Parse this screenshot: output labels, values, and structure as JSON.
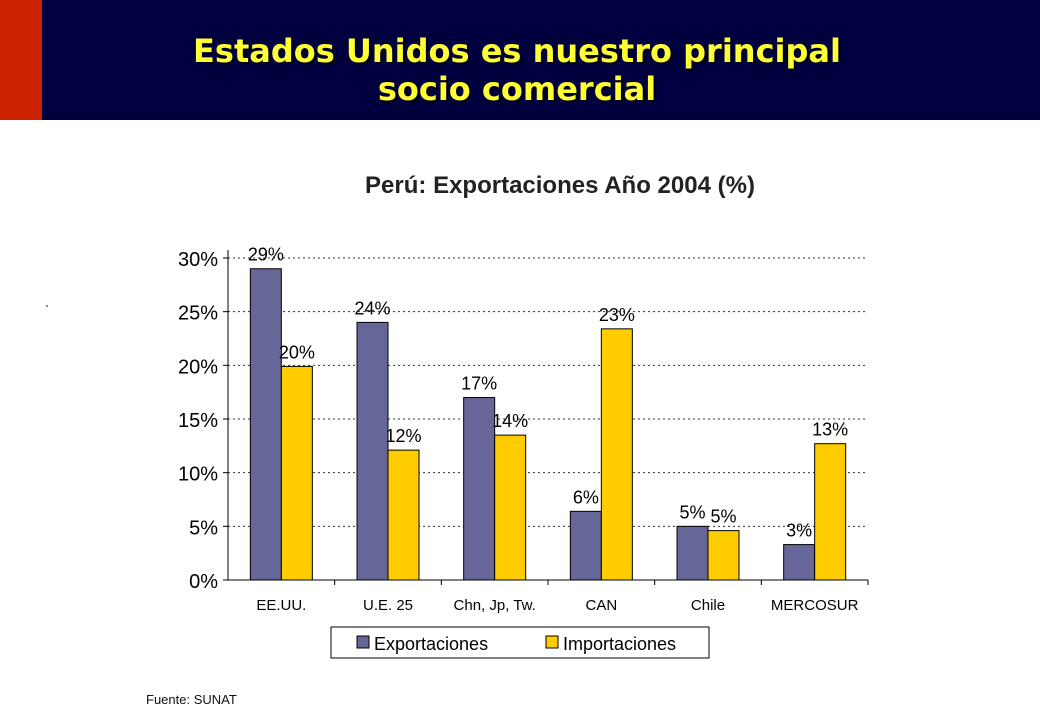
{
  "header": {
    "title_line1": "Estados Unidos es nuestro principal",
    "title_line2": "socio comercial"
  },
  "colors": {
    "header_bg": "#00003f",
    "accent": "#cc2200",
    "title_text": "#ffff33",
    "exportaciones": "#666699",
    "importaciones": "#ffcc00"
  },
  "chart_data": {
    "type": "bar",
    "title": "Perú: Exportaciones Año 2004 (%)",
    "categories": [
      "EE.UU.",
      "U.E. 25",
      "Chn, Jp, Tw.",
      "CAN",
      "Chile",
      "MERCOSUR"
    ],
    "series": [
      {
        "name": "Exportaciones",
        "values": [
          29,
          24,
          17,
          6.4,
          5,
          3.3
        ],
        "labels": [
          "29%",
          "24%",
          "17%",
          "6%",
          "5%",
          "3%"
        ]
      },
      {
        "name": "Importaciones",
        "values": [
          19.9,
          12.1,
          13.5,
          23.4,
          4.6,
          12.7
        ],
        "labels": [
          "20%",
          "12%",
          "14%",
          "23%",
          "5%",
          "13%"
        ]
      }
    ],
    "y_ticks": [
      "0%",
      "5%",
      "10%",
      "15%",
      "20%",
      "25%",
      "30%"
    ],
    "ylim": [
      0,
      30
    ],
    "grid": "horizontal dotted",
    "legend": "bottom"
  },
  "footer": {
    "source": "Fuente: SUNAT"
  }
}
